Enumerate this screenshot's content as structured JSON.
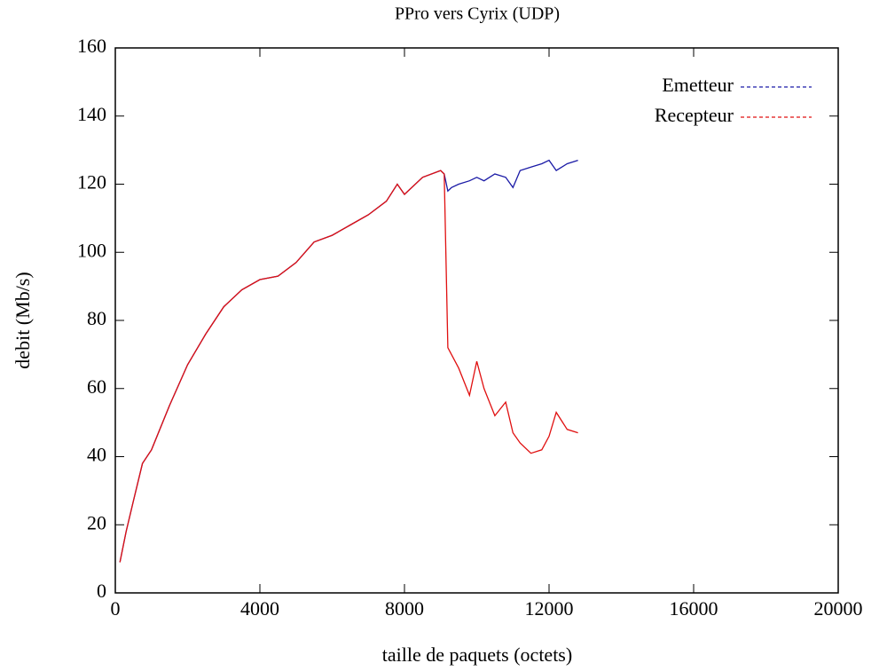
{
  "chart_data": {
    "type": "line",
    "title": "PPro vers Cyrix (UDP)",
    "x_label": "taille de paquets (octets)",
    "y_label": "debit (Mb/s)",
    "x": [
      128,
      300,
      500,
      750,
      1000,
      1500,
      2000,
      2500,
      3000,
      3500,
      4000,
      4500,
      5000,
      5500,
      6000,
      6500,
      7000,
      7500,
      7800,
      8000,
      8500,
      9000,
      9100,
      9200,
      9300,
      9500,
      9800,
      10000,
      10200,
      10500,
      10800,
      11000,
      11200,
      11500,
      11800,
      12000,
      12200,
      12500,
      12800
    ],
    "series": [
      {
        "name": "Emetteur",
        "color": "#1a1aa6",
        "values": [
          9,
          18,
          27,
          38,
          42,
          55,
          67,
          76,
          84,
          89,
          92,
          93,
          97,
          103,
          105,
          108,
          111,
          115,
          120,
          117,
          122,
          124,
          123,
          118,
          119,
          120,
          121,
          122,
          121,
          123,
          122,
          119,
          124,
          125,
          126,
          127,
          124,
          126,
          127
        ]
      },
      {
        "name": "Recepteur",
        "color": "#e01010",
        "values": [
          9,
          18,
          27,
          38,
          42,
          55,
          67,
          76,
          84,
          89,
          92,
          93,
          97,
          103,
          105,
          108,
          111,
          115,
          120,
          117,
          122,
          124,
          123,
          72,
          70,
          66,
          58,
          68,
          60,
          52,
          56,
          47,
          44,
          41,
          42,
          46,
          53,
          48,
          47
        ]
      }
    ],
    "xlim": [
      0,
      20000
    ],
    "xticks": [
      0,
      4000,
      8000,
      12000,
      16000,
      20000
    ],
    "ylim": [
      0,
      160
    ],
    "yticks": [
      0,
      20,
      40,
      60,
      80,
      100,
      120,
      140,
      160
    ],
    "legend": "top-right"
  }
}
